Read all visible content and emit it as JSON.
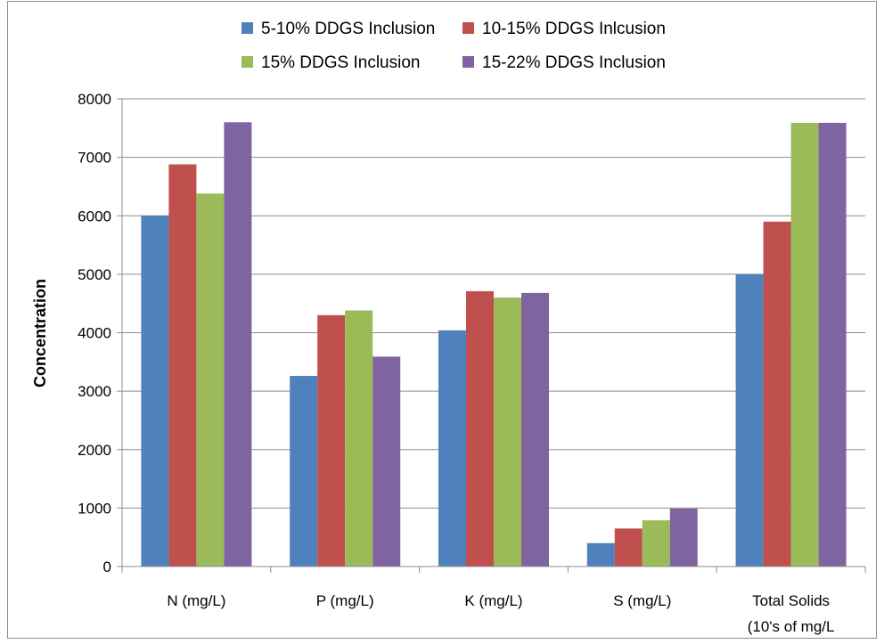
{
  "chart_data": {
    "type": "bar",
    "ylabel": "Concentration",
    "xlabel": "",
    "ylim": [
      0,
      8000
    ],
    "yticks": [
      0,
      1000,
      2000,
      3000,
      4000,
      5000,
      6000,
      7000,
      8000
    ],
    "grid": true,
    "legend_position": "top",
    "categories": [
      [
        "N (mg/L)"
      ],
      [
        "P (mg/L)"
      ],
      [
        "K (mg/L)"
      ],
      [
        "S (mg/L)"
      ],
      [
        "Total Solids",
        "(10's of mg/L"
      ]
    ],
    "series": [
      {
        "name": "5-10% DDGS Inclusion",
        "color": "#4f81bd",
        "values": [
          6000,
          3260,
          4040,
          400,
          5000
        ]
      },
      {
        "name": "10-15% DDGS Inlcusion",
        "color": "#c0504d",
        "values": [
          6880,
          4300,
          4710,
          650,
          5900
        ]
      },
      {
        "name": "15% DDGS Inclusion",
        "color": "#9bbb59",
        "values": [
          6380,
          4380,
          4600,
          790,
          7590
        ]
      },
      {
        "name": "15-22% DDGS Inclusion",
        "color": "#8064a2",
        "values": [
          7600,
          3590,
          4680,
          990,
          7590
        ]
      }
    ]
  }
}
